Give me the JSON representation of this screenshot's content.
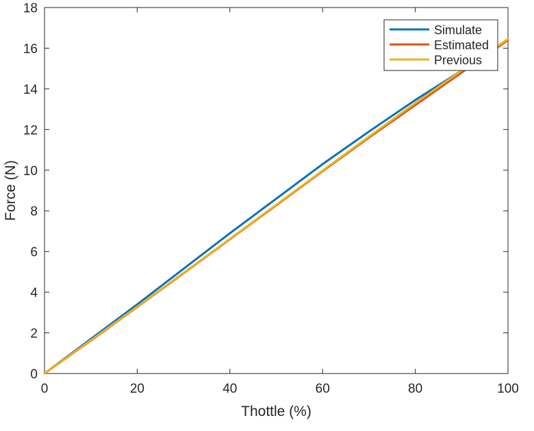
{
  "chart_data": {
    "type": "line",
    "title": "",
    "xlabel": "Thottle (%)",
    "ylabel": "Force (N)",
    "xlim": [
      0,
      100
    ],
    "ylim": [
      0,
      18
    ],
    "xticks": [
      0,
      20,
      40,
      60,
      80,
      100
    ],
    "yticks": [
      0,
      2,
      4,
      6,
      8,
      10,
      12,
      14,
      16,
      18
    ],
    "grid": false,
    "legend_position": "top-right",
    "series": [
      {
        "name": "Simulate",
        "color": "#0072BD",
        "x": [
          0,
          10,
          20,
          30,
          40,
          50,
          60,
          70,
          80,
          90,
          100
        ],
        "y": [
          0,
          1.7,
          3.4,
          5.15,
          6.9,
          8.6,
          10.3,
          11.9,
          13.45,
          14.9,
          16.45
        ]
      },
      {
        "name": "Estimated",
        "color": "#D95319",
        "x": [
          0,
          10,
          20,
          30,
          40,
          50,
          60,
          70,
          80,
          90,
          100
        ],
        "y": [
          0,
          1.62,
          3.27,
          4.93,
          6.6,
          8.27,
          9.95,
          11.6,
          13.2,
          14.8,
          16.4
        ]
      },
      {
        "name": "Previous",
        "color": "#EDB120",
        "x": [
          0,
          10,
          20,
          30,
          40,
          50,
          60,
          70,
          80,
          90,
          100
        ],
        "y": [
          0,
          1.64,
          3.29,
          4.95,
          6.62,
          8.3,
          9.98,
          11.65,
          13.3,
          14.9,
          16.45
        ]
      }
    ]
  }
}
